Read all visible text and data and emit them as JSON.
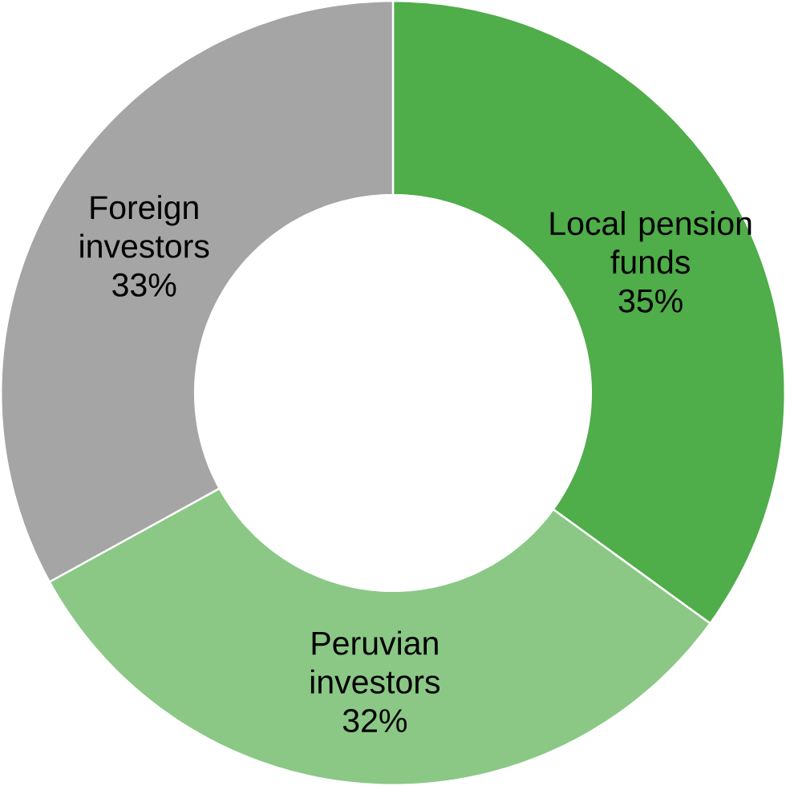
{
  "chart_data": {
    "type": "donut",
    "categories": [
      "Local pension funds",
      "Peruvian investors",
      "Foreign investors"
    ],
    "values": [
      35,
      32,
      33
    ],
    "value_labels": [
      "35%",
      "32%",
      "33%"
    ],
    "colors": [
      "#4fad4a",
      "#8bc886",
      "#a5a5a5"
    ]
  }
}
